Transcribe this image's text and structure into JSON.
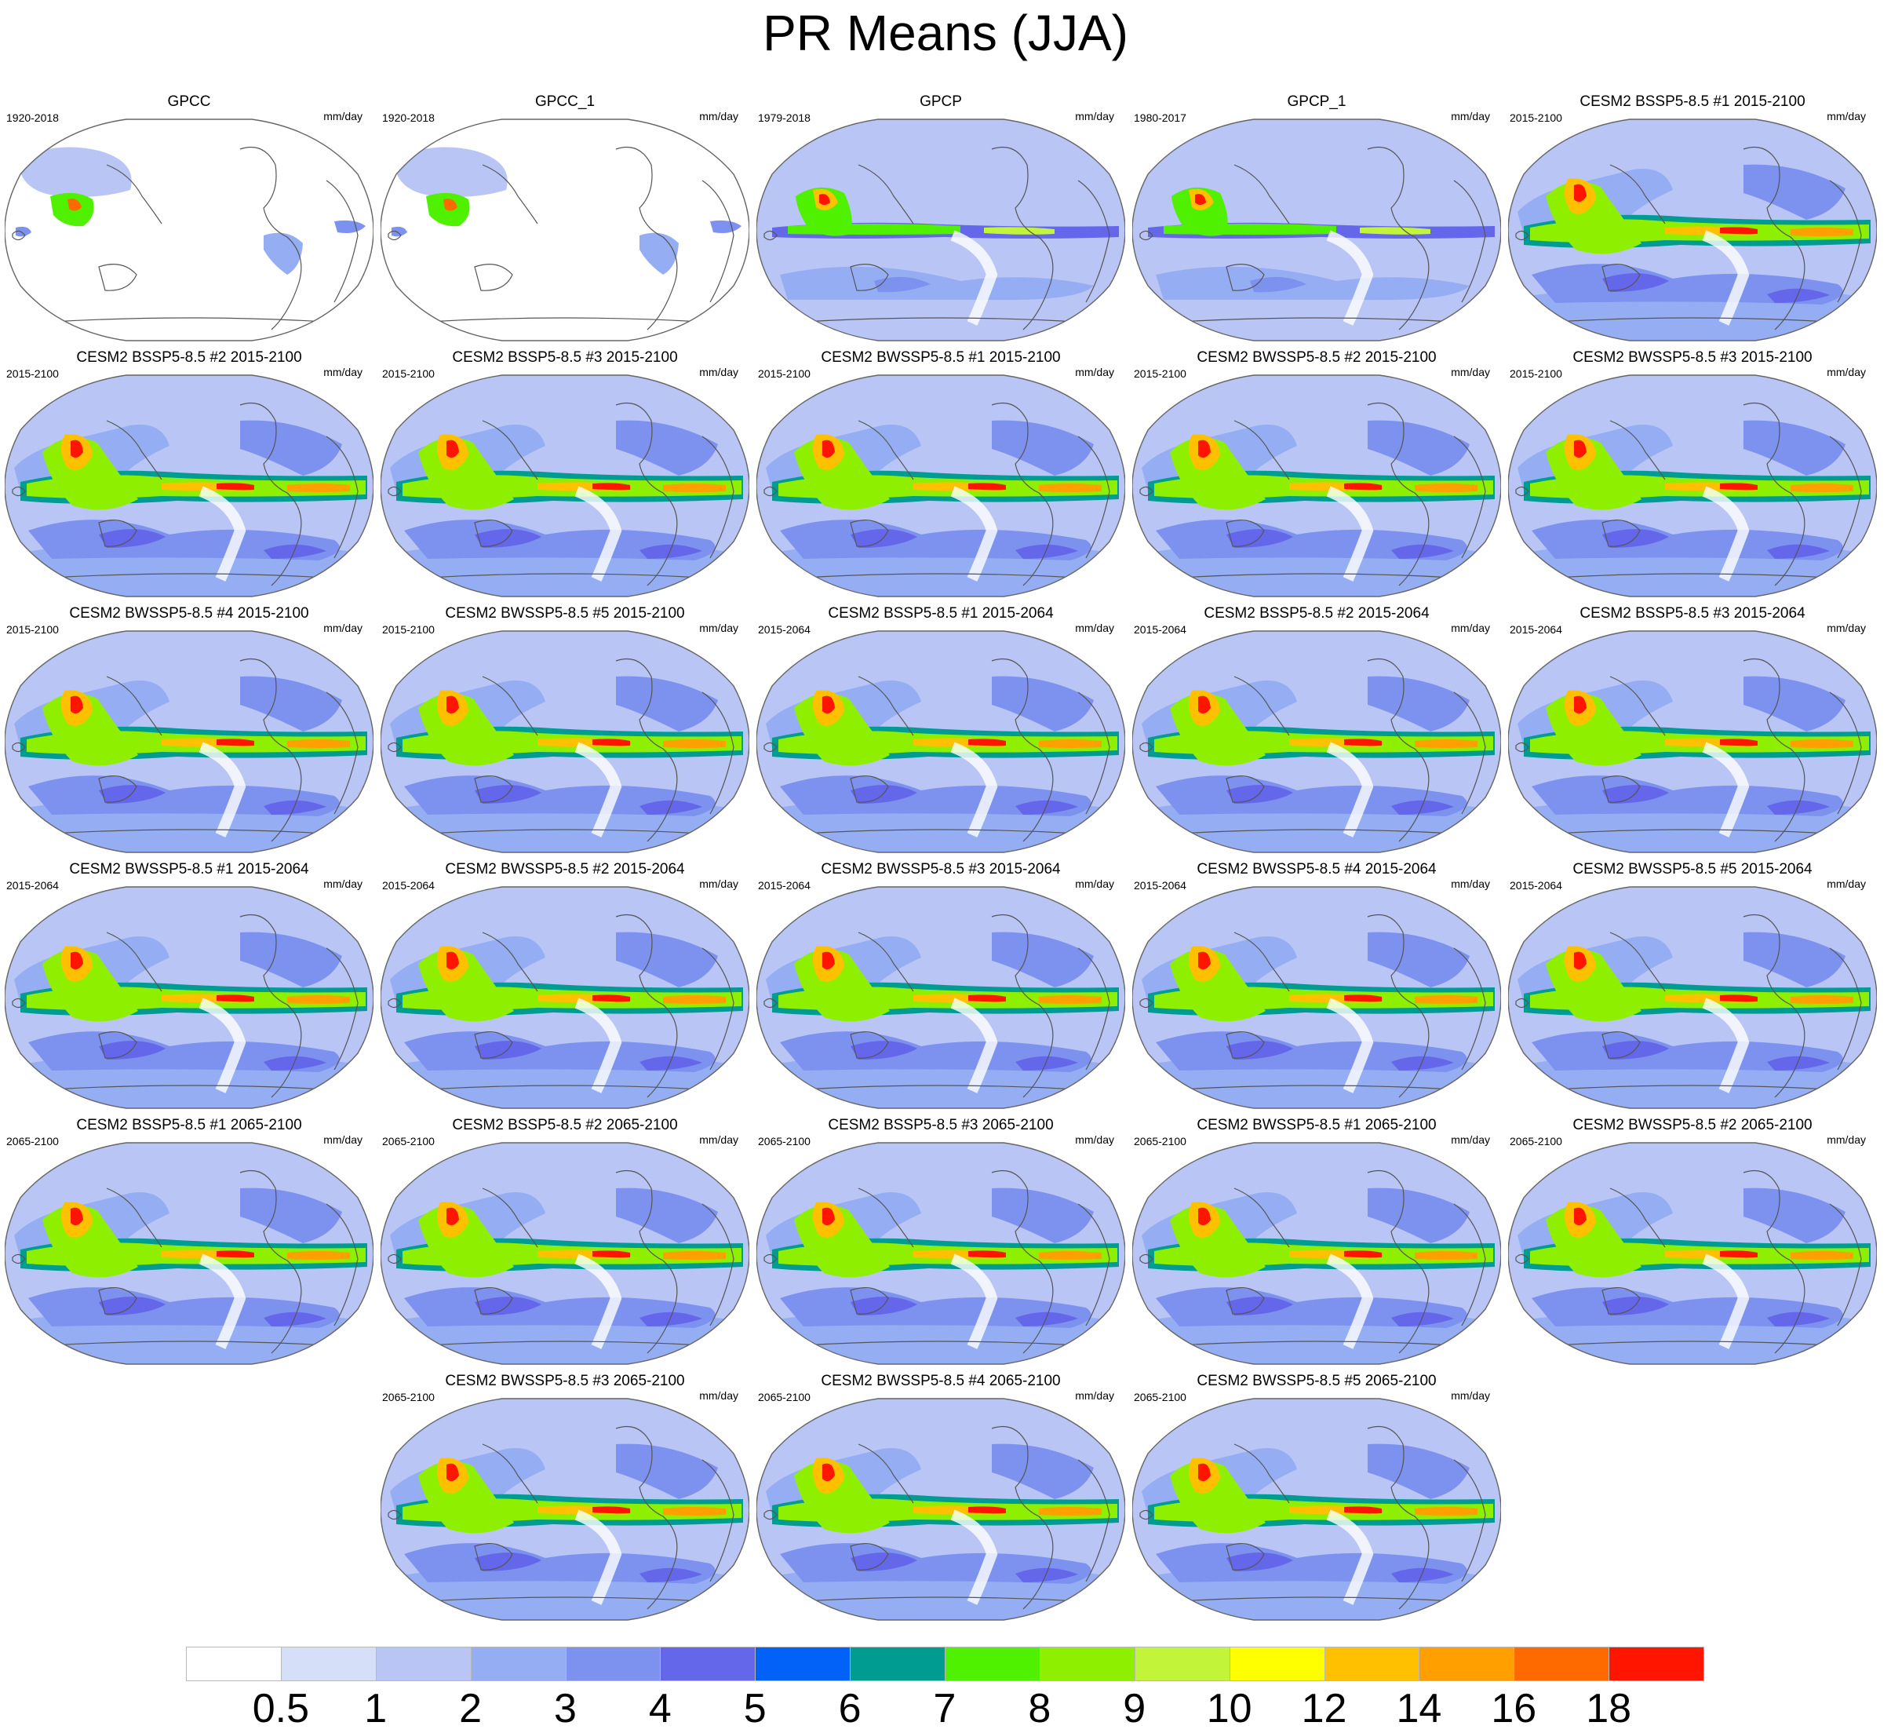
{
  "title": "PR Means (JJA)",
  "units": "mm/day",
  "panels": [
    {
      "title": "GPCC",
      "period": "1920-2018",
      "kind": "gauge"
    },
    {
      "title": "GPCC_1",
      "period": "1920-2018",
      "kind": "gauge"
    },
    {
      "title": "GPCP",
      "period": "1979-2018",
      "kind": "obs"
    },
    {
      "title": "GPCP_1",
      "period": "1980-2017",
      "kind": "obs"
    },
    {
      "title": "CESM2 BSSP5-8.5 #1 2015-2100",
      "period": "2015-2100",
      "kind": "model"
    },
    {
      "title": "CESM2 BSSP5-8.5 #2 2015-2100",
      "period": "2015-2100",
      "kind": "model"
    },
    {
      "title": "CESM2 BSSP5-8.5 #3 2015-2100",
      "period": "2015-2100",
      "kind": "model"
    },
    {
      "title": "CESM2 BWSSP5-8.5 #1 2015-2100",
      "period": "2015-2100",
      "kind": "model"
    },
    {
      "title": "CESM2 BWSSP5-8.5 #2 2015-2100",
      "period": "2015-2100",
      "kind": "model"
    },
    {
      "title": "CESM2 BWSSP5-8.5 #3 2015-2100",
      "period": "2015-2100",
      "kind": "model"
    },
    {
      "title": "CESM2 BWSSP5-8.5 #4 2015-2100",
      "period": "2015-2100",
      "kind": "model"
    },
    {
      "title": "CESM2 BWSSP5-8.5 #5 2015-2100",
      "period": "2015-2100",
      "kind": "model"
    },
    {
      "title": "CESM2 BSSP5-8.5 #1 2015-2064",
      "period": "2015-2064",
      "kind": "model"
    },
    {
      "title": "CESM2 BSSP5-8.5 #2 2015-2064",
      "period": "2015-2064",
      "kind": "model"
    },
    {
      "title": "CESM2 BSSP5-8.5 #3 2015-2064",
      "period": "2015-2064",
      "kind": "model"
    },
    {
      "title": "CESM2 BWSSP5-8.5 #1 2015-2064",
      "period": "2015-2064",
      "kind": "model"
    },
    {
      "title": "CESM2 BWSSP5-8.5 #2 2015-2064",
      "period": "2015-2064",
      "kind": "model"
    },
    {
      "title": "CESM2 BWSSP5-8.5 #3 2015-2064",
      "period": "2015-2064",
      "kind": "model"
    },
    {
      "title": "CESM2 BWSSP5-8.5 #4 2015-2064",
      "period": "2015-2064",
      "kind": "model"
    },
    {
      "title": "CESM2 BWSSP5-8.5 #5 2015-2064",
      "period": "2015-2064",
      "kind": "model"
    },
    {
      "title": "CESM2 BSSP5-8.5 #1 2065-2100",
      "period": "2065-2100",
      "kind": "model"
    },
    {
      "title": "CESM2 BSSP5-8.5 #2 2065-2100",
      "period": "2065-2100",
      "kind": "model"
    },
    {
      "title": "CESM2 BSSP5-8.5 #3 2065-2100",
      "period": "2065-2100",
      "kind": "model"
    },
    {
      "title": "CESM2 BWSSP5-8.5 #1 2065-2100",
      "period": "2065-2100",
      "kind": "model"
    },
    {
      "title": "CESM2 BWSSP5-8.5 #2 2065-2100",
      "period": "2065-2100",
      "kind": "model"
    },
    {
      "title": "CESM2 BWSSP5-8.5 #3 2065-2100",
      "period": "2065-2100",
      "kind": "model"
    },
    {
      "title": "CESM2 BWSSP5-8.5 #4 2065-2100",
      "period": "2065-2100",
      "kind": "model"
    },
    {
      "title": "CESM2 BWSSP5-8.5 #5 2065-2100",
      "period": "2065-2100",
      "kind": "model"
    }
  ],
  "colorbar": {
    "labels": [
      "0.5",
      "1",
      "2",
      "3",
      "4",
      "5",
      "6",
      "7",
      "8",
      "9",
      "10",
      "12",
      "14",
      "16",
      "18"
    ],
    "colors": [
      "#ffffff",
      "#d6dff8",
      "#b8c5f5",
      "#95aef3",
      "#7d91ee",
      "#6467e9",
      "#0261f6",
      "#009c91",
      "#4ff000",
      "#8ef000",
      "#c2f53a",
      "#ffff00",
      "#ffc000",
      "#ff9f00",
      "#ff6a00",
      "#ff1500"
    ]
  }
}
